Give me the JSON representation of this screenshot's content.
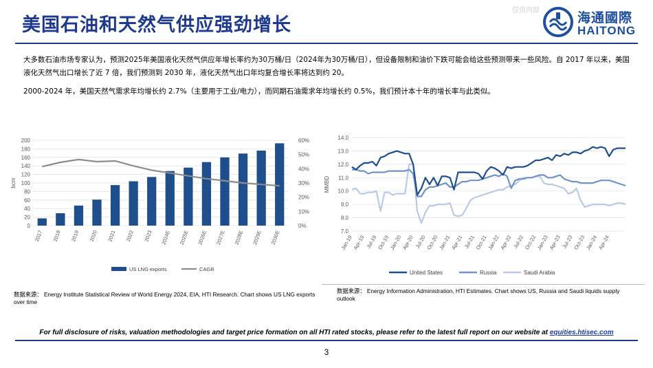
{
  "title": "美国石油和天然气供应强劲增长",
  "watermark": "仅供内部",
  "logo": {
    "cn": "海通國際",
    "en": "HAITONG"
  },
  "paragraphs": [
    "大多数石油市场专家认为，预测2025年美国液化天然气供应年增长率约为30万桶/日（2024年为30万桶/日），但设备限制和油价下跌可能会给这些预测带来一些风险。自 2017 年以来，美国液化天然气出口增长了近 7 倍，我们预测到 2030 年，液化天然气出口年均复合增长率将达到约 20。",
    "2000-2024 年，美国天然气需求年均增长约 2.7%（主要用于工业/电力），而同期石油需求年均增长约 0.5%，我们预计本十年的增长率与此类似。"
  ],
  "sources": [
    {
      "prefix": "数据来源：",
      "text": "Energy Institute Statistical Review of World Energy 2024, EIA, HTI Research. Chart shows US LNG exports over time"
    },
    {
      "prefix": "数据来源：",
      "text": "Energy Information Administration, HTI Estimates. Chart shows US, Russia and Saudi liquids supply outlook"
    }
  ],
  "disclosure": {
    "text": "For full disclosure of risks, valuation methodologies and target price formation on all HTI rated stocks, please refer to the latest full report on our website at ",
    "link": "equities.htisec.com"
  },
  "page_number": "3",
  "colors": {
    "title": "#1d3a8f",
    "bar": "#1f4e8c",
    "cagr": "#8c8c8c",
    "us": "#1f4e8c",
    "russia": "#6f93c9",
    "saudi": "#b7cbe6"
  },
  "chart_data": [
    {
      "type": "bar",
      "ylabel": "bcm",
      "categories": [
        "2017",
        "2018",
        "2019",
        "2020",
        "2021",
        "2022",
        "2023",
        "2024E",
        "2025E",
        "2026E",
        "2027E",
        "2028E",
        "2029E",
        "2030E"
      ],
      "ylim": [
        0,
        200
      ],
      "yticks": [
        "0",
        "20",
        "40",
        "60",
        "80",
        "100",
        "120",
        "140",
        "160",
        "180",
        "200"
      ],
      "y2lim": [
        0,
        60
      ],
      "y2ticks": [
        "0%",
        "10%",
        "20%",
        "30%",
        "40%",
        "50%",
        "60%"
      ],
      "series": [
        {
          "name": "US LNG exports",
          "type": "bar",
          "values": [
            17,
            29,
            47,
            61,
            95,
            104,
            114,
            128,
            136,
            149,
            160,
            169,
            176,
            193
          ]
        },
        {
          "name": "CAGR",
          "type": "line",
          "axis": "right",
          "values": [
            41.5,
            44.5,
            46.5,
            45,
            45.5,
            42,
            39,
            37,
            35,
            33,
            31.5,
            30,
            29,
            28
          ]
        }
      ],
      "legend": "bottom"
    },
    {
      "type": "line",
      "ylabel": "MMBD",
      "ylim": [
        7.0,
        14.0
      ],
      "yticks": [
        "7.0",
        "8.0",
        "9.0",
        "10.0",
        "11.0",
        "12.0",
        "13.0",
        "14.0"
      ],
      "x_start": "2019-01",
      "xticks": [
        "Jan-19",
        "Apr-19",
        "Jul-19",
        "Oct-19",
        "Jan-20",
        "Apr-20",
        "Jul-20",
        "Oct-20",
        "Jan-21",
        "Apr-21",
        "Jul-21",
        "Oct-21",
        "Jan-22",
        "Apr-22",
        "Jul-22",
        "Oct-22",
        "Jan-23",
        "Apr-23",
        "Jul-23",
        "Oct-23",
        "Jan-24",
        "Apr-24"
      ],
      "series": [
        {
          "name": "United States",
          "values": [
            11.8,
            11.6,
            11.9,
            12.1,
            12.1,
            12.2,
            11.9,
            12.5,
            12.6,
            12.8,
            12.9,
            13.0,
            12.9,
            12.8,
            12.8,
            12.0,
            9.7,
            10.2,
            11.0,
            10.5,
            11.0,
            10.4,
            11.1,
            11.1,
            11.0,
            10.1,
            11.4,
            11.4,
            11.4,
            11.4,
            11.4,
            11.3,
            10.9,
            11.5,
            11.8,
            11.7,
            11.5,
            11.2,
            11.8,
            11.7,
            11.8,
            11.8,
            11.8,
            11.9,
            12.1,
            12.3,
            12.3,
            12.4,
            12.5,
            12.3,
            12.7,
            12.6,
            12.8,
            12.7,
            12.9,
            12.9,
            12.8,
            13.0,
            13.1,
            13.3,
            13.2,
            13.3,
            13.2,
            12.6,
            13.1,
            13.2,
            13.2,
            13.2
          ]
        },
        {
          "name": "Russia",
          "values": [
            11.6,
            11.6,
            11.5,
            11.5,
            11.3,
            11.4,
            11.4,
            11.4,
            11.4,
            11.5,
            11.5,
            11.5,
            11.5,
            11.5,
            11.6,
            11.3,
            9.6,
            9.6,
            10.1,
            10.3,
            10.3,
            10.4,
            10.5,
            10.6,
            10.3,
            10.3,
            10.5,
            10.7,
            10.7,
            10.8,
            10.8,
            10.8,
            10.9,
            11.0,
            11.1,
            11.2,
            11.1,
            11.3,
            11.1,
            10.2,
            10.8,
            10.9,
            10.9,
            11.0,
            11.0,
            11.1,
            11.2,
            11.2,
            11.0,
            11.0,
            11.1,
            11.2,
            10.9,
            10.8,
            10.7,
            10.7,
            10.6,
            10.6,
            10.6,
            10.6,
            10.7,
            10.8,
            10.8,
            10.8,
            10.7,
            10.6,
            10.5,
            10.4
          ]
        },
        {
          "name": "Saudi Arabia",
          "values": [
            10.1,
            10.2,
            9.8,
            9.8,
            9.9,
            9.9,
            10.0,
            8.5,
            9.9,
            9.9,
            9.7,
            9.8,
            9.8,
            9.8,
            12.0,
            12.0,
            8.5,
            7.6,
            8.4,
            8.9,
            8.9,
            9.0,
            9.0,
            9.0,
            9.1,
            8.2,
            8.1,
            8.2,
            8.7,
            9.3,
            9.5,
            9.6,
            9.7,
            9.8,
            9.9,
            10.0,
            10.1,
            10.1,
            10.3,
            10.4,
            10.5,
            10.8,
            11.0,
            11.0,
            11.0,
            11.1,
            11.1,
            10.6,
            10.5,
            10.5,
            10.4,
            10.3,
            10.2,
            9.8,
            9.9,
            10.2,
            9.3,
            8.8,
            8.9,
            9.0,
            9.0,
            9.0,
            9.0,
            8.9,
            9.0,
            9.1,
            9.1,
            9.0
          ]
        }
      ],
      "legend": "bottom"
    }
  ]
}
